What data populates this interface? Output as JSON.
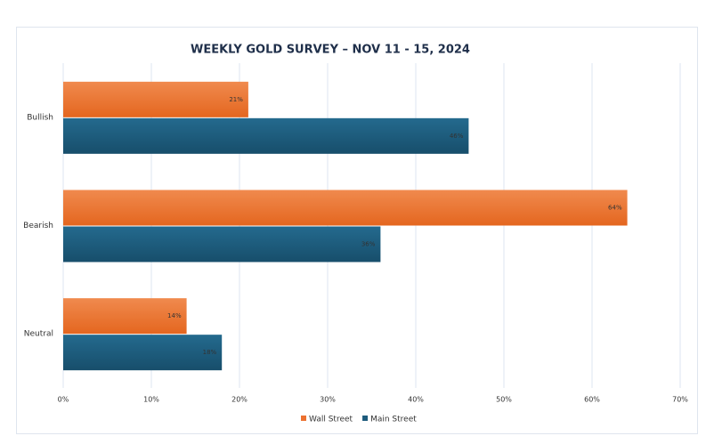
{
  "chart_data": {
    "type": "barh",
    "title": "WEEKLY GOLD SURVEY – NOV 11 - 15, 2024",
    "categories": [
      "Bullish",
      "Bearish",
      "Neutral"
    ],
    "series": [
      {
        "name": "Wall Street",
        "color": "#ec7130",
        "values": [
          21,
          64,
          14
        ],
        "value_labels": [
          "21%",
          "64%",
          "14%"
        ]
      },
      {
        "name": "Main Street",
        "color": "#1d5b7c",
        "values": [
          46,
          36,
          18
        ],
        "value_labels": [
          "46%",
          "36%",
          "18%"
        ]
      }
    ],
    "xlim": [
      0,
      70
    ],
    "xticks": [
      {
        "value": 0,
        "label": "0%"
      },
      {
        "value": 10,
        "label": "10%"
      },
      {
        "value": 20,
        "label": "20%"
      },
      {
        "value": 30,
        "label": "30%"
      },
      {
        "value": 40,
        "label": "40%"
      },
      {
        "value": 50,
        "label": "50%"
      },
      {
        "value": 60,
        "label": "60%"
      },
      {
        "value": 70,
        "label": "70%"
      }
    ],
    "grid": true,
    "legend": "bottom"
  }
}
